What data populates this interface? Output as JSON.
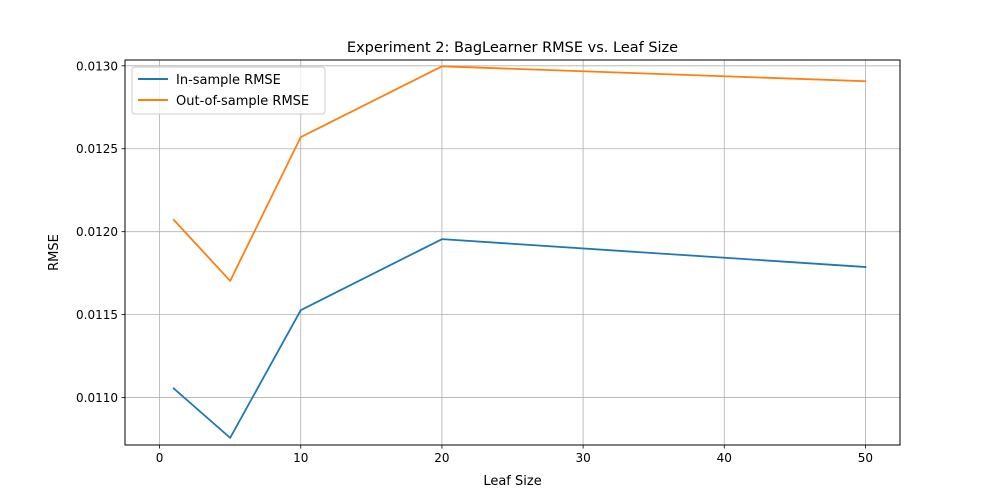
{
  "chart_data": {
    "type": "line",
    "title": "Experiment 2: BagLearner RMSE vs. Leaf Size",
    "xlabel": "Leaf Size",
    "ylabel": "RMSE",
    "x": [
      1,
      5,
      10,
      20,
      50
    ],
    "series": [
      {
        "name": "In-sample RMSE",
        "color": "#1f77b4",
        "values": [
          0.011055,
          0.010757,
          0.011527,
          0.011955,
          0.011787
        ]
      },
      {
        "name": "Out-of-sample RMSE",
        "color": "#ff7f0e",
        "values": [
          0.012072,
          0.011703,
          0.01257,
          0.012997,
          0.012907
        ]
      }
    ],
    "xlim": [
      -2.45,
      52.45
    ],
    "ylim": [
      0.010714,
      0.013035
    ],
    "xticks": [
      0,
      10,
      20,
      30,
      40,
      50
    ],
    "xtick_labels": [
      "0",
      "10",
      "20",
      "30",
      "40",
      "50"
    ],
    "yticks": [
      0.011,
      0.0115,
      0.012,
      0.0125,
      0.013
    ],
    "ytick_labels": [
      "0.0110",
      "0.0115",
      "0.0120",
      "0.0125",
      "0.0130"
    ],
    "grid": true,
    "legend_position": "upper-left"
  }
}
